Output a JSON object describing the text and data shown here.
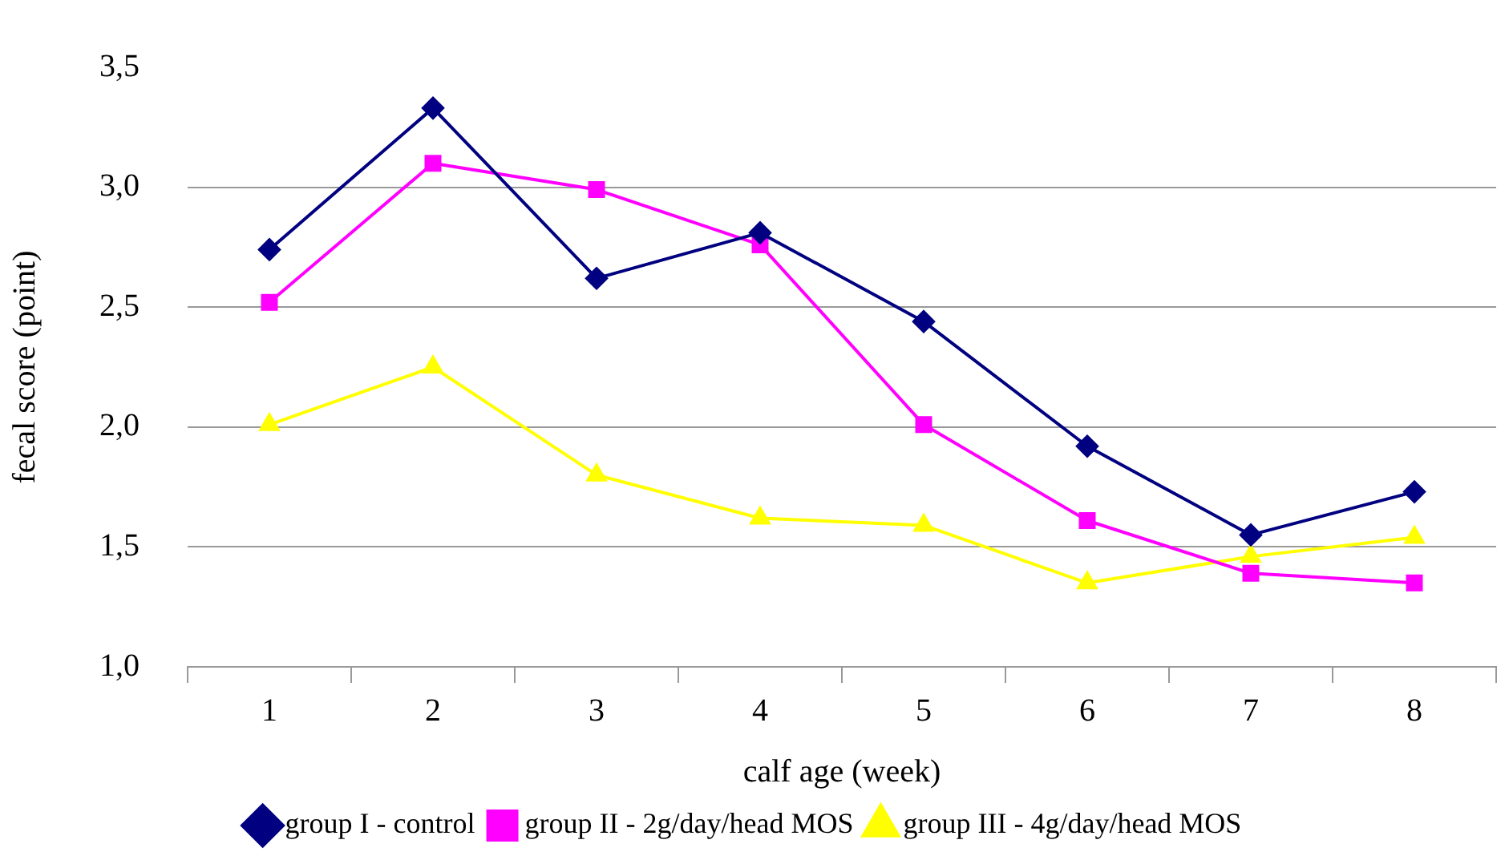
{
  "chart_data": {
    "type": "line",
    "xlabel": "calf age (week)",
    "ylabel": "fecal score (point)",
    "categories": [
      "1",
      "2",
      "3",
      "4",
      "5",
      "6",
      "7",
      "8"
    ],
    "series": [
      {
        "name": "group I - control",
        "color": "#000080",
        "marker": "diamond",
        "values": [
          2.74,
          3.33,
          2.62,
          2.81,
          2.44,
          1.92,
          1.55,
          1.73
        ]
      },
      {
        "name": "group II - 2g/day/head MOS",
        "color": "#ff00ff",
        "marker": "square",
        "values": [
          2.52,
          3.1,
          2.99,
          2.76,
          2.01,
          1.61,
          1.39,
          1.35
        ]
      },
      {
        "name": "group III - 4g/day/head MOS",
        "color": "#ffff00",
        "marker": "triangle",
        "values": [
          2.01,
          2.25,
          1.8,
          1.62,
          1.59,
          1.35,
          1.46,
          1.54
        ]
      }
    ],
    "ylim": [
      1.0,
      3.5
    ],
    "yticks": [
      {
        "value": 1.0,
        "label": "1,0"
      },
      {
        "value": 1.5,
        "label": "1,5"
      },
      {
        "value": 2.0,
        "label": "2,0"
      },
      {
        "value": 2.5,
        "label": "2,5"
      },
      {
        "value": 3.0,
        "label": "3,0"
      },
      {
        "value": 3.5,
        "label": "3,5"
      }
    ],
    "grid": "y",
    "legend": "bottom",
    "line_style": "solid"
  }
}
